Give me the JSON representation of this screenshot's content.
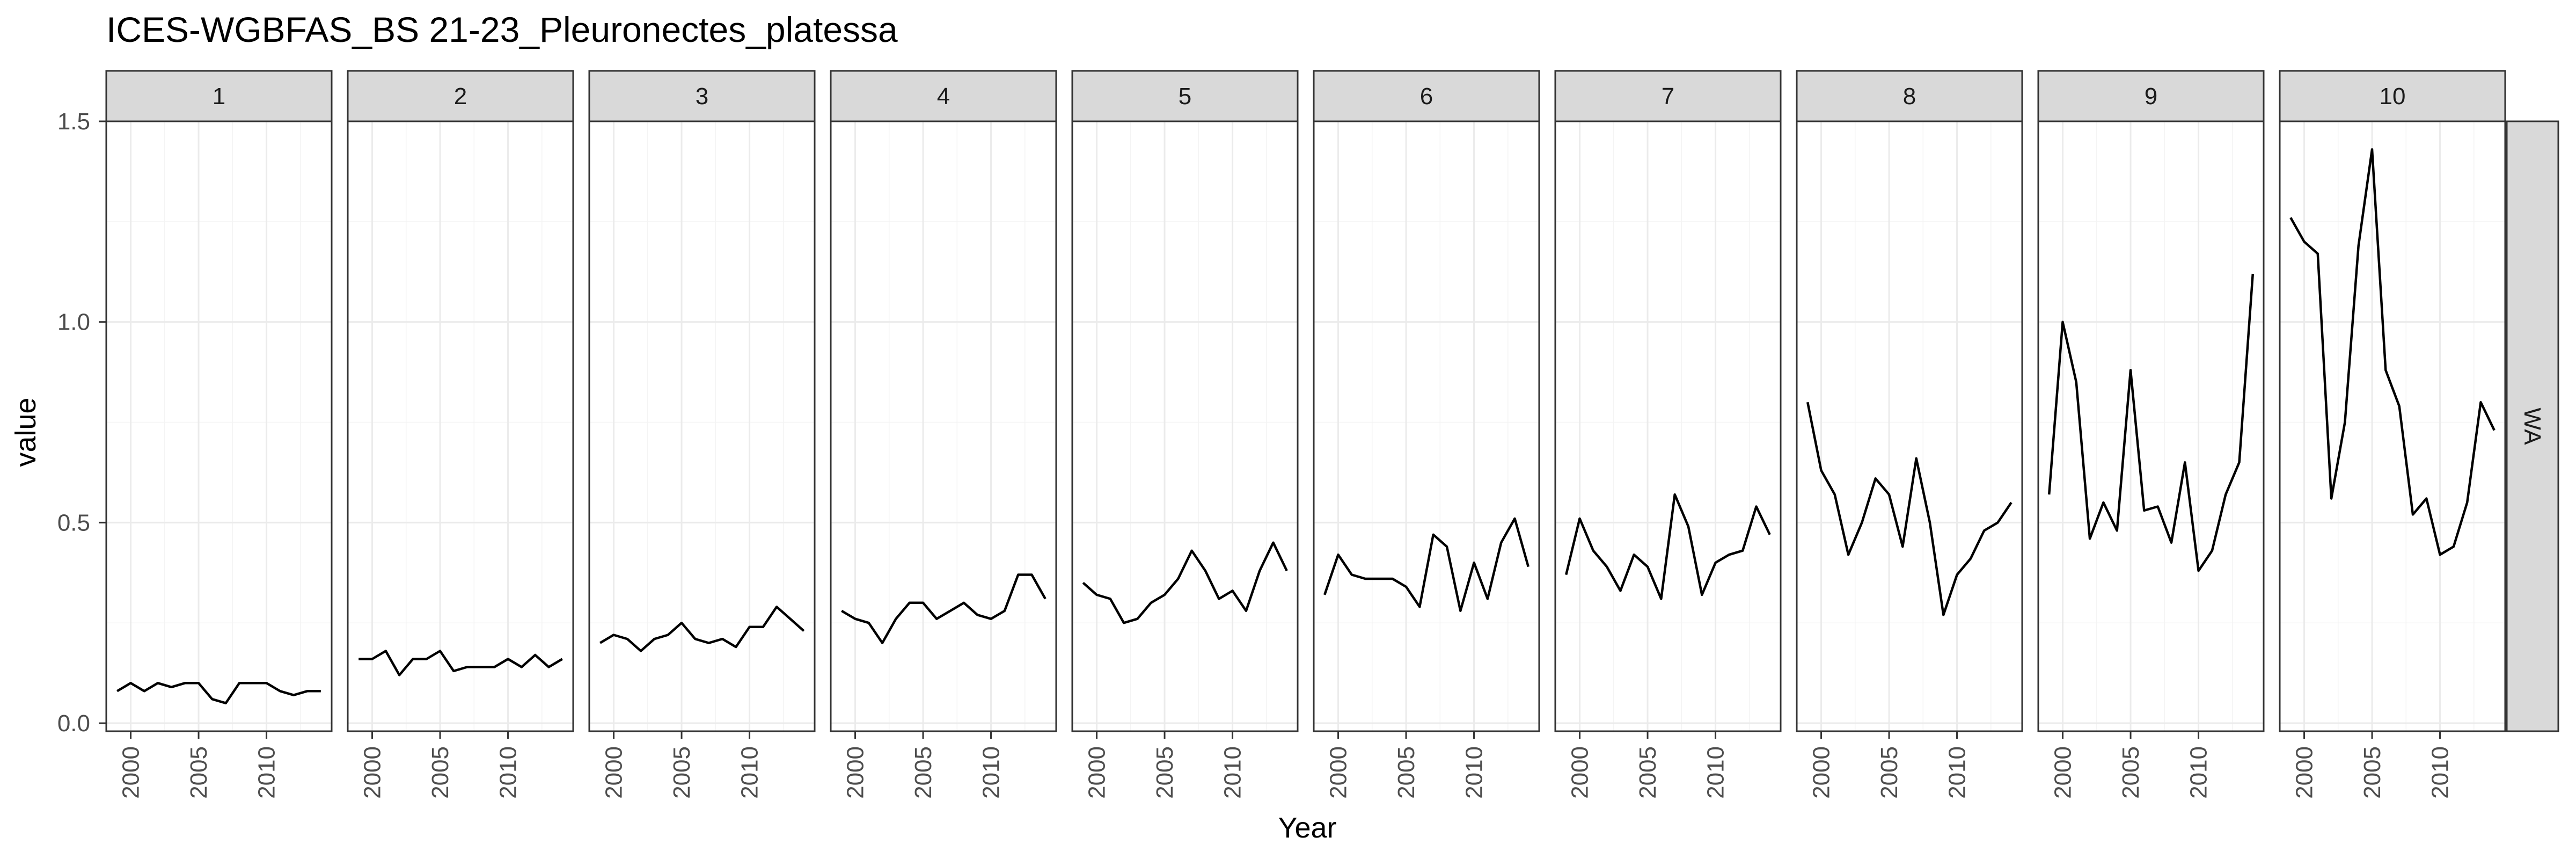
{
  "chart_data": {
    "type": "line",
    "title": "ICES-WGBFAS_BS 21-23_Pleuronectes_platessa",
    "xlabel": "Year",
    "ylabel": "value",
    "row_strip": "WA",
    "ylim": [
      -0.02,
      1.5
    ],
    "y_ticks": [
      0.0,
      0.5,
      1.0,
      1.5
    ],
    "y_tick_labels": [
      "0.0",
      "0.5",
      "1.0",
      "1.5"
    ],
    "xlim": [
      1998.2,
      2014.8
    ],
    "x_ticks": [
      2000,
      2005,
      2010
    ],
    "x_tick_labels": [
      "2000",
      "2005",
      "2010"
    ],
    "grid": true,
    "years": [
      1999,
      2000,
      2001,
      2002,
      2003,
      2004,
      2005,
      2006,
      2007,
      2008,
      2009,
      2010,
      2011,
      2012,
      2013,
      2014
    ],
    "panels": [
      {
        "label": "1",
        "values": [
          0.08,
          0.1,
          0.08,
          0.1,
          0.09,
          0.1,
          0.1,
          0.06,
          0.05,
          0.1,
          0.1,
          0.1,
          0.08,
          0.07,
          0.08,
          0.08
        ]
      },
      {
        "label": "2",
        "values": [
          0.16,
          0.16,
          0.18,
          0.12,
          0.16,
          0.16,
          0.18,
          0.13,
          0.14,
          0.14,
          0.14,
          0.16,
          0.14,
          0.17,
          0.14,
          0.16
        ]
      },
      {
        "label": "3",
        "values": [
          0.2,
          0.22,
          0.21,
          0.18,
          0.21,
          0.22,
          0.25,
          0.21,
          0.2,
          0.21,
          0.19,
          0.24,
          0.24,
          0.29,
          0.26,
          0.23
        ]
      },
      {
        "label": "4",
        "values": [
          0.28,
          0.26,
          0.25,
          0.2,
          0.26,
          0.3,
          0.3,
          0.26,
          0.28,
          0.3,
          0.27,
          0.26,
          0.28,
          0.37,
          0.37,
          0.31
        ]
      },
      {
        "label": "5",
        "values": [
          0.35,
          0.32,
          0.31,
          0.25,
          0.26,
          0.3,
          0.32,
          0.36,
          0.43,
          0.38,
          0.31,
          0.33,
          0.28,
          0.38,
          0.45,
          0.38
        ]
      },
      {
        "label": "6",
        "values": [
          0.32,
          0.42,
          0.37,
          0.36,
          0.36,
          0.36,
          0.34,
          0.29,
          0.47,
          0.44,
          0.28,
          0.4,
          0.31,
          0.45,
          0.51,
          0.39
        ]
      },
      {
        "label": "7",
        "values": [
          0.37,
          0.51,
          0.43,
          0.39,
          0.33,
          0.42,
          0.39,
          0.31,
          0.57,
          0.49,
          0.32,
          0.4,
          0.42,
          0.43,
          0.54,
          0.47
        ]
      },
      {
        "label": "8",
        "values": [
          0.8,
          0.63,
          0.57,
          0.42,
          0.5,
          0.61,
          0.57,
          0.44,
          0.66,
          0.5,
          0.27,
          0.37,
          0.41,
          0.48,
          0.5,
          0.55
        ]
      },
      {
        "label": "9",
        "values": [
          0.57,
          1.0,
          0.85,
          0.46,
          0.55,
          0.48,
          0.88,
          0.53,
          0.54,
          0.45,
          0.65,
          0.38,
          0.43,
          0.57,
          0.65,
          1.12
        ]
      },
      {
        "label": "10",
        "values": [
          1.26,
          1.2,
          1.17,
          0.56,
          0.75,
          1.19,
          1.43,
          0.88,
          0.79,
          0.52,
          0.56,
          0.42,
          0.44,
          0.55,
          0.8,
          0.73
        ]
      }
    ]
  }
}
